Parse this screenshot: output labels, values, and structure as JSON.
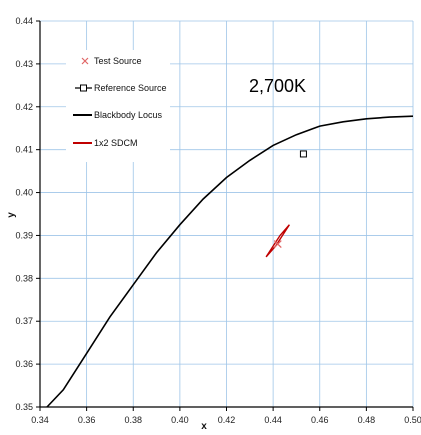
{
  "chart_data": {
    "type": "scatter",
    "xlabel": "x",
    "ylabel": "y",
    "xlim": [
      0.34,
      0.5
    ],
    "ylim": [
      0.35,
      0.44
    ],
    "x_ticks": [
      "0.34",
      "0.36",
      "0.38",
      "0.40",
      "0.42",
      "0.44",
      "0.46",
      "0.48",
      "0.50"
    ],
    "y_ticks": [
      "0.35",
      "0.36",
      "0.37",
      "0.38",
      "0.39",
      "0.40",
      "0.41",
      "0.42",
      "0.43",
      "0.44"
    ],
    "grid": true,
    "annotation": "2,700K",
    "legend": [
      {
        "label": "Test Source",
        "marker": "x",
        "color": "#e06666"
      },
      {
        "label": "Reference Source",
        "marker": "square",
        "color": "#000000"
      },
      {
        "label": "Blackbody Locus",
        "marker": "line",
        "color": "#000000"
      },
      {
        "label": "1x2 SDCM",
        "marker": "line",
        "color": "#c00000"
      }
    ],
    "series": [
      {
        "name": "Blackbody Locus",
        "points": [
          [
            0.343,
            0.35
          ],
          [
            0.35,
            0.354
          ],
          [
            0.36,
            0.3625
          ],
          [
            0.37,
            0.371
          ],
          [
            0.38,
            0.3785
          ],
          [
            0.39,
            0.386
          ],
          [
            0.4,
            0.3925
          ],
          [
            0.41,
            0.3985
          ],
          [
            0.42,
            0.4035
          ],
          [
            0.43,
            0.4075
          ],
          [
            0.44,
            0.411
          ],
          [
            0.45,
            0.4135
          ],
          [
            0.46,
            0.4155
          ],
          [
            0.47,
            0.4165
          ],
          [
            0.48,
            0.4172
          ],
          [
            0.49,
            0.4176
          ],
          [
            0.5,
            0.4178
          ]
        ]
      },
      {
        "name": "Reference Source",
        "points": [
          [
            0.453,
            0.409
          ]
        ]
      },
      {
        "name": "Test Source",
        "points": [
          [
            0.442,
            0.388
          ]
        ]
      },
      {
        "name": "1x2 SDCM",
        "points": [
          [
            0.437,
            0.385
          ],
          [
            0.441,
            0.3875
          ],
          [
            0.447,
            0.3925
          ],
          [
            0.443,
            0.39
          ],
          [
            0.437,
            0.385
          ]
        ]
      }
    ]
  }
}
